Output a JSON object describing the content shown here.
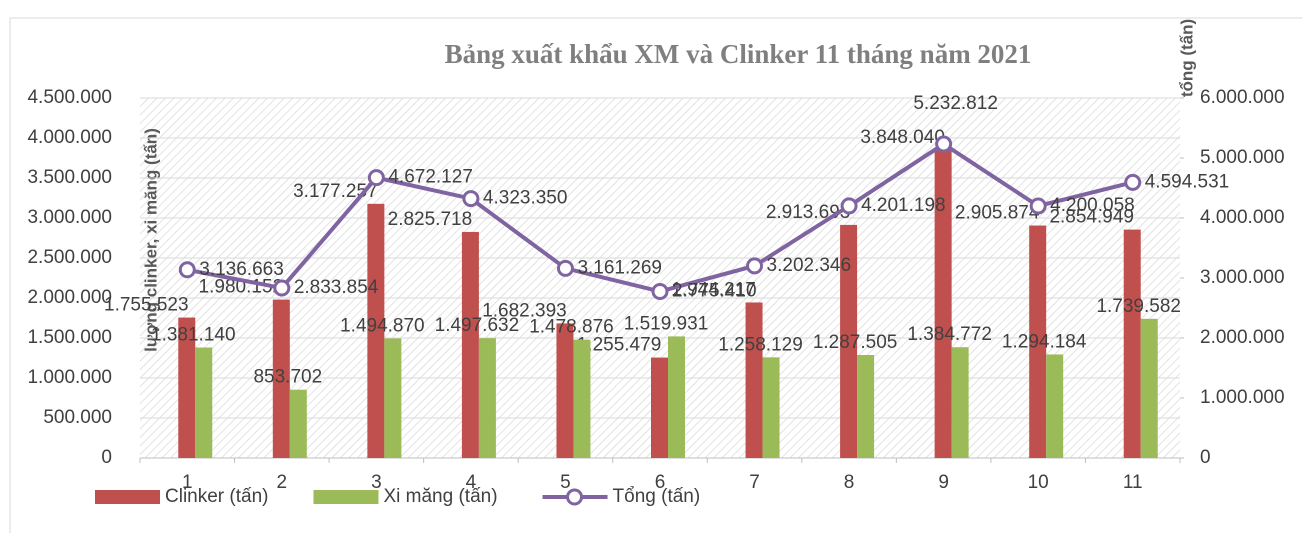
{
  "chart_data": {
    "type": "bar",
    "title": "Bảng xuất khẩu XM và Clinker 11 tháng  năm 2021",
    "ylabel": "lượng clinker, xi măng (tấn)",
    "y2label": "tổng (tấn)",
    "categories": [
      "1",
      "2",
      "3",
      "4",
      "5",
      "6",
      "7",
      "8",
      "9",
      "10",
      "11"
    ],
    "series": [
      {
        "name": "Clinker (tấn)",
        "color": "#c0504d",
        "kind": "bar",
        "values": [
          1755523,
          1980152,
          3177257,
          2825718,
          1682393,
          1255479,
          1944217,
          2913693,
          3848040,
          2905874,
          2854949
        ],
        "value_labels": [
          "1.755.523",
          "1.980.152",
          "3.177.257",
          "2.825.718",
          "1.682.393",
          "1.255.479",
          "1.944.217",
          "2.913.693",
          "3.848.040",
          "2.905.874",
          "2.854.949"
        ]
      },
      {
        "name": "Xi măng (tấn)",
        "color": "#9bbb59",
        "kind": "bar",
        "values": [
          1381140,
          853702,
          1494870,
          1497632,
          1478876,
          1519931,
          1258129,
          1287505,
          1384772,
          1294184,
          1739582
        ],
        "value_labels": [
          "1.381.140",
          "853.702",
          "1.494.870",
          "1.497.632",
          "1.478.876",
          "1.519.931",
          "1.258.129",
          "1.287.505",
          "1.384.772",
          "1.294.184",
          "1.739.582"
        ]
      },
      {
        "name": "Tổng (tấn)",
        "color": "#8064a2",
        "kind": "line",
        "axis": "y2",
        "values": [
          3136663,
          2833854,
          4672127,
          4323350,
          3161269,
          2775410,
          3202346,
          4201198,
          5232812,
          4200058,
          4594531
        ],
        "value_labels": [
          "3.136.663",
          "2.833.854",
          "4.672.127",
          "4.323.350",
          "3.161.269",
          "2.775.410",
          "3.202.346",
          "4.201.198",
          "5.232.812",
          "4.200.058",
          "4.594.531"
        ]
      }
    ],
    "ylim": [
      0,
      4500000
    ],
    "yticks": [
      0,
      {
        "value": 500000,
        "label": "500.000"
      },
      {
        "value": 1000000,
        "label": "1.000.000"
      },
      {
        "value": 1500000,
        "label": "1.500.000"
      },
      {
        "value": 2000000,
        "label": "2.000.000"
      },
      {
        "value": 2500000,
        "label": "2.500.000"
      },
      {
        "value": 3000000,
        "label": "3.000.000"
      },
      {
        "value": 3500000,
        "label": "3.500.000"
      },
      {
        "value": 4000000,
        "label": "4.000.000"
      },
      {
        "value": 4500000,
        "label": "4.500.000"
      }
    ],
    "y2lim": [
      0,
      6000000
    ],
    "y2ticks": [
      0,
      {
        "value": 1000000,
        "label": "1.000.000"
      },
      {
        "value": 2000000,
        "label": "2.000.000"
      },
      {
        "value": 3000000,
        "label": "3.000.000"
      },
      {
        "value": 4000000,
        "label": "4.000.000"
      },
      {
        "value": 5000000,
        "label": "5.000.000"
      },
      {
        "value": 6000000,
        "label": "6.000.000"
      }
    ],
    "grid": true,
    "legend": "bottom"
  }
}
